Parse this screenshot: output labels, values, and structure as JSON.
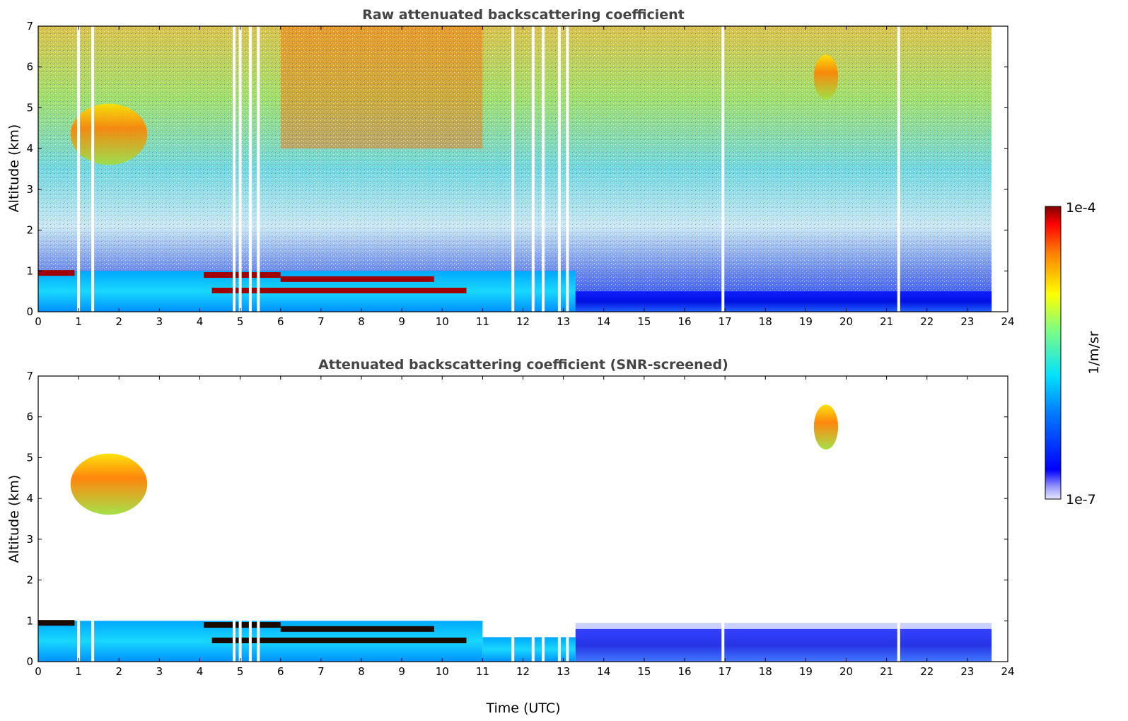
{
  "chart_data": [
    {
      "type": "heatmap",
      "title": "Raw attenuated backscattering coefficient",
      "xlabel": "",
      "ylabel": "Altitude (km)",
      "xlim": [
        0,
        24
      ],
      "ylim": [
        0,
        7
      ],
      "x_ticks": [
        "0",
        "1",
        "2",
        "3",
        "4",
        "5",
        "6",
        "7",
        "8",
        "9",
        "10",
        "11",
        "12",
        "13",
        "14",
        "15",
        "16",
        "17",
        "18",
        "19",
        "20",
        "21",
        "22",
        "23",
        "24"
      ],
      "y_ticks": [
        "0",
        "1",
        "2",
        "3",
        "4",
        "5",
        "6",
        "7"
      ],
      "data_end_time": 23.6,
      "features": {
        "gaps_time": [
          1.0,
          1.35,
          4.85,
          5.0,
          5.25,
          5.45,
          11.75,
          12.25,
          12.5,
          12.9,
          13.1,
          16.95,
          21.3
        ],
        "low_cloud_layers": [
          {
            "t_start": 0.0,
            "t_end": 0.9,
            "altitude": 0.95
          },
          {
            "t_start": 4.1,
            "t_end": 6.0,
            "altitude": 0.9
          },
          {
            "t_start": 6.0,
            "t_end": 9.8,
            "altitude": 0.8
          },
          {
            "t_start": 4.3,
            "t_end": 10.6,
            "altitude": 0.52
          }
        ],
        "high_cloud_patches": [
          {
            "t_start": 0.8,
            "t_end": 2.7,
            "alt_low": 3.6,
            "alt_high": 5.1
          },
          {
            "t_start": 19.2,
            "t_end": 19.8,
            "alt_low": 5.2,
            "alt_high": 6.3
          }
        ]
      }
    },
    {
      "type": "heatmap",
      "title": "Attenuated backscattering coefficient (SNR-screened)",
      "xlabel": "Time (UTC)",
      "ylabel": "Altitude (km)",
      "xlim": [
        0,
        24
      ],
      "ylim": [
        0,
        7
      ],
      "x_ticks": [
        "0",
        "1",
        "2",
        "3",
        "4",
        "5",
        "6",
        "7",
        "8",
        "9",
        "10",
        "11",
        "12",
        "13",
        "14",
        "15",
        "16",
        "17",
        "18",
        "19",
        "20",
        "21",
        "22",
        "23",
        "24"
      ],
      "y_ticks": [
        "0",
        "1",
        "2",
        "3",
        "4",
        "5",
        "6",
        "7"
      ],
      "data_end_time": 23.6
    }
  ],
  "colorbar": {
    "label": "1/m/sr",
    "max_label": "1e-4",
    "min_label": "1e-7",
    "scale": "log",
    "range": [
      1e-07,
      0.0001
    ]
  },
  "colors": {
    "low": "#0000ff",
    "mid": "#00e0ff",
    "mid_high": "#ffff00",
    "high": "#ff2000",
    "max": "#800000"
  }
}
